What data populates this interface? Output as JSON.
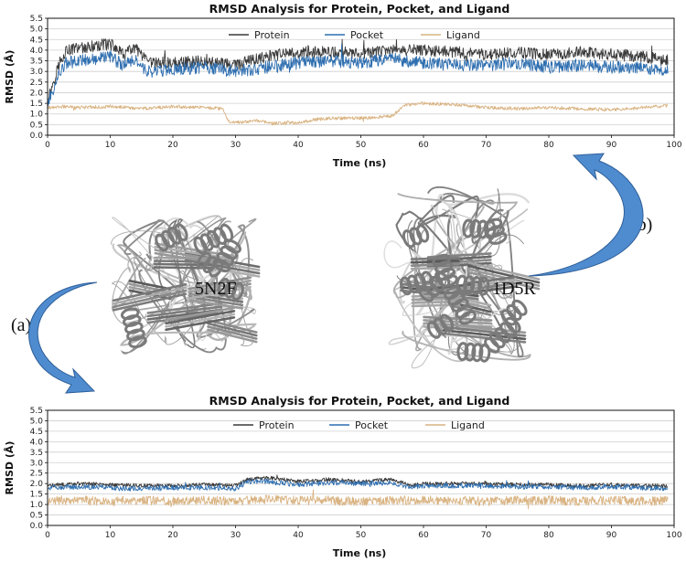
{
  "figure": {
    "panel_a_label": "(a)",
    "panel_b_label": "(b)",
    "structure_left_label": "5N2F",
    "structure_right_label": "1D5R",
    "structure_color": "#7a7a7a",
    "arrow_color": "#4f8ccf"
  },
  "chart_data": [
    {
      "type": "line",
      "title": "RMSD Analysis for Protein, Pocket, and Ligand",
      "xlabel": "Time (ns)",
      "ylabel": "RMSD (Å)",
      "xlim": [
        0,
        100
      ],
      "ylim": [
        0,
        5.5
      ],
      "xticks": [
        0,
        10,
        20,
        30,
        40,
        50,
        60,
        70,
        80,
        90,
        100
      ],
      "yticks": [
        0.0,
        0.5,
        1.0,
        1.5,
        2.0,
        2.5,
        3.0,
        3.5,
        4.0,
        4.5,
        5.0,
        5.5
      ],
      "grid": "horizontal",
      "legend_position": "top-center",
      "series": [
        {
          "name": "Protein",
          "color": "#3a3a3a",
          "x": [
            0,
            1,
            2,
            3,
            5,
            8,
            10,
            12,
            14,
            16,
            20,
            25,
            30,
            35,
            40,
            45,
            50,
            55,
            60,
            65,
            70,
            75,
            80,
            85,
            90,
            95,
            99
          ],
          "values": [
            1.6,
            2.6,
            3.5,
            4.0,
            4.1,
            4.2,
            4.3,
            3.8,
            4.1,
            3.4,
            3.4,
            3.5,
            3.3,
            3.7,
            3.9,
            3.9,
            3.8,
            4.0,
            4.0,
            3.9,
            3.8,
            3.9,
            3.8,
            3.9,
            3.8,
            3.7,
            3.5
          ],
          "noise": 0.28
        },
        {
          "name": "Pocket",
          "color": "#2f6fb0",
          "x": [
            0,
            1,
            2,
            3,
            5,
            8,
            10,
            12,
            14,
            16,
            20,
            25,
            30,
            35,
            40,
            45,
            50,
            55,
            60,
            65,
            70,
            75,
            80,
            85,
            90,
            95,
            99
          ],
          "values": [
            1.5,
            2.2,
            3.0,
            3.4,
            3.5,
            3.6,
            3.7,
            3.3,
            3.5,
            3.0,
            3.1,
            3.2,
            3.0,
            3.2,
            3.4,
            3.5,
            3.4,
            3.6,
            3.4,
            3.3,
            3.3,
            3.4,
            3.2,
            3.3,
            3.2,
            3.2,
            3.0
          ],
          "noise": 0.3
        },
        {
          "name": "Ligand",
          "color": "#d9b382",
          "x": [
            0,
            2,
            5,
            10,
            15,
            20,
            25,
            28,
            29,
            31,
            33,
            36,
            40,
            43,
            45,
            50,
            55,
            57,
            60,
            65,
            70,
            75,
            80,
            85,
            90,
            95,
            99
          ],
          "values": [
            1.3,
            1.35,
            1.3,
            1.35,
            1.25,
            1.35,
            1.3,
            1.25,
            0.6,
            0.6,
            0.7,
            0.55,
            0.6,
            0.75,
            0.8,
            0.8,
            0.9,
            1.4,
            1.5,
            1.45,
            1.3,
            1.25,
            1.3,
            1.25,
            1.2,
            1.3,
            1.4
          ],
          "noise": 0.08
        }
      ]
    },
    {
      "type": "line",
      "title": "RMSD Analysis for Protein, Pocket, and Ligand",
      "xlabel": "Time (ns)",
      "ylabel": "RMSD (Å)",
      "xlim": [
        0,
        100
      ],
      "ylim": [
        0,
        5.5
      ],
      "xticks": [
        0,
        10,
        20,
        30,
        40,
        50,
        60,
        70,
        80,
        90,
        100
      ],
      "yticks": [
        0.0,
        0.5,
        1.0,
        1.5,
        2.0,
        2.5,
        3.0,
        3.5,
        4.0,
        4.5,
        5.0,
        5.5
      ],
      "grid": "horizontal",
      "legend_position": "top-right",
      "series": [
        {
          "name": "Protein",
          "color": "#3a3a3a",
          "x": [
            0,
            5,
            10,
            15,
            20,
            25,
            30,
            32,
            35,
            40,
            45,
            50,
            55,
            58,
            60,
            65,
            70,
            75,
            80,
            85,
            90,
            95,
            99
          ],
          "values": [
            1.9,
            2.0,
            1.95,
            1.9,
            1.9,
            1.95,
            1.9,
            2.2,
            2.3,
            2.1,
            2.2,
            2.1,
            2.2,
            1.9,
            2.0,
            2.0,
            2.0,
            1.95,
            1.95,
            1.9,
            1.95,
            1.9,
            1.9
          ],
          "noise": 0.09
        },
        {
          "name": "Pocket",
          "color": "#2f6fb0",
          "x": [
            0,
            5,
            10,
            15,
            20,
            25,
            30,
            32,
            35,
            40,
            45,
            50,
            55,
            58,
            60,
            65,
            70,
            75,
            80,
            85,
            90,
            95,
            99
          ],
          "values": [
            1.8,
            1.85,
            1.8,
            1.75,
            1.8,
            1.8,
            1.75,
            2.1,
            2.1,
            1.95,
            2.05,
            2.0,
            2.05,
            1.8,
            1.9,
            1.9,
            1.9,
            1.85,
            1.85,
            1.8,
            1.85,
            1.8,
            1.75
          ],
          "noise": 0.12
        },
        {
          "name": "Ligand",
          "color": "#d9b382",
          "x": [
            0,
            5,
            10,
            15,
            20,
            25,
            30,
            35,
            40,
            45,
            50,
            55,
            60,
            65,
            70,
            75,
            80,
            85,
            90,
            95,
            99
          ],
          "values": [
            1.2,
            1.2,
            1.15,
            1.2,
            1.15,
            1.2,
            1.15,
            1.25,
            1.2,
            1.2,
            1.15,
            1.2,
            1.2,
            1.2,
            1.15,
            1.2,
            1.2,
            1.15,
            1.2,
            1.15,
            1.2
          ],
          "noise": 0.22
        }
      ]
    }
  ]
}
